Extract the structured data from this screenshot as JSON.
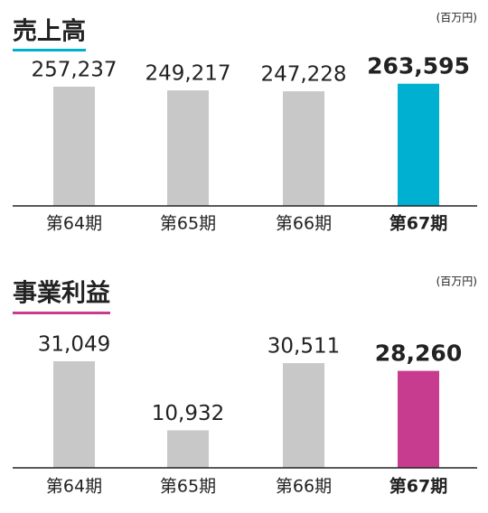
{
  "chart_data": [
    {
      "type": "bar",
      "title": "売上高",
      "unit": "(百万円)",
      "categories": [
        "第64期",
        "第65期",
        "第66期",
        "第67期"
      ],
      "values": [
        257237,
        249217,
        247228,
        263595
      ],
      "value_labels": [
        "257,237",
        "249,217",
        "247,228",
        "263,595"
      ],
      "colors": [
        "#c8c8c8",
        "#c8c8c8",
        "#c8c8c8",
        "#00b0d0"
      ],
      "ylim": [
        0,
        300000
      ]
    },
    {
      "type": "bar",
      "title": "事業利益",
      "unit": "(百万円)",
      "categories": [
        "第64期",
        "第65期",
        "第66期",
        "第67期"
      ],
      "values": [
        31049,
        10932,
        30511,
        28260
      ],
      "value_labels": [
        "31,049",
        "10,932",
        "30,511",
        "28,260"
      ],
      "colors": [
        "#c8c8c8",
        "#c8c8c8",
        "#c8c8c8",
        "#c83c90"
      ],
      "ylim": [
        0,
        35000
      ]
    }
  ]
}
